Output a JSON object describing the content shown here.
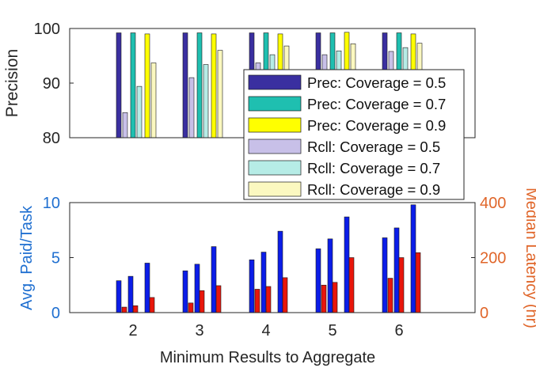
{
  "chart_data": [
    {
      "type": "bar",
      "categories": [
        "2",
        "3",
        "4",
        "5",
        "6"
      ],
      "ylabel": "Precision",
      "ylim": [
        80,
        100
      ],
      "yticks": [
        80,
        90,
        100
      ],
      "grid": false,
      "legend_position": "right, overlapping into lower panel",
      "series": [
        {
          "name": "Prec: Coverage = 0.5",
          "color": "#3a2fa0",
          "values": [
            99.2,
            99.2,
            99.2,
            99.2,
            99.2
          ]
        },
        {
          "name": "Rcll: Coverage = 0.5",
          "color": "#c8c0e8",
          "values": [
            84.6,
            91.0,
            93.7,
            95.2,
            95.8
          ]
        },
        {
          "name": "Prec: Coverage = 0.7",
          "color": "#1fbfb0",
          "values": [
            99.2,
            99.2,
            99.2,
            99.2,
            99.2
          ]
        },
        {
          "name": "Rcll: Coverage = 0.7",
          "color": "#b6ece6",
          "values": [
            89.4,
            93.4,
            95.2,
            95.9,
            96.5
          ]
        },
        {
          "name": "Prec: Coverage = 0.9",
          "color": "#ffff00",
          "values": [
            99.0,
            99.0,
            99.0,
            99.3,
            99.0
          ]
        },
        {
          "name": "Rcll: Coverage = 0.9",
          "color": "#fbf8c0",
          "values": [
            93.7,
            96.0,
            96.8,
            97.2,
            97.3
          ]
        }
      ],
      "legend": [
        {
          "label": "Prec: Coverage = 0.5",
          "color": "#3a2fa0"
        },
        {
          "label": "Prec: Coverage = 0.7",
          "color": "#1fbfb0"
        },
        {
          "label": "Prec: Coverage = 0.9",
          "color": "#ffff00"
        },
        {
          "label": "Rcll: Coverage = 0.5",
          "color": "#c8c0e8"
        },
        {
          "label": "Rcll: Coverage = 0.7",
          "color": "#b6ece6"
        },
        {
          "label": "Rcll: Coverage = 0.9",
          "color": "#fbf8c0"
        }
      ]
    },
    {
      "type": "bar",
      "categories": [
        "2",
        "3",
        "4",
        "5",
        "6"
      ],
      "xlabel": "Minimum Results to Aggregate",
      "ylabel": "Avg. Paid/Task",
      "ylim": [
        0,
        10
      ],
      "yticks": [
        0,
        5,
        10
      ],
      "ylabel_color": "#1f6fd0",
      "y2label": "Median Latency (hr)",
      "y2lim": [
        0,
        400
      ],
      "y2ticks": [
        0,
        200,
        400
      ],
      "y2label_color": "#e0662a",
      "grid": false,
      "series": [
        {
          "axis": "left",
          "color": "#0b1de8",
          "values": [
            2.9,
            3.8,
            4.8,
            5.8,
            6.8
          ]
        },
        {
          "axis": "right",
          "color": "#e8160b",
          "values": [
            20,
            35,
            85,
            100,
            125
          ]
        },
        {
          "axis": "left",
          "color": "#0b1de8",
          "values": [
            3.3,
            4.4,
            5.5,
            6.7,
            7.7
          ]
        },
        {
          "axis": "right",
          "color": "#e8160b",
          "values": [
            25,
            80,
            95,
            110,
            200
          ]
        },
        {
          "axis": "left",
          "color": "#0b1de8",
          "values": [
            4.5,
            6.0,
            7.4,
            8.7,
            9.8
          ]
        },
        {
          "axis": "right",
          "color": "#e8160b",
          "values": [
            55,
            98,
            127,
            200,
            218
          ]
        }
      ]
    }
  ]
}
